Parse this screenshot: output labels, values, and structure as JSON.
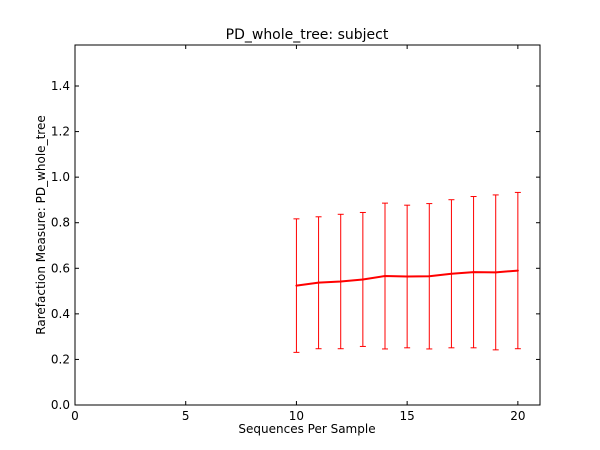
{
  "chart_data": {
    "type": "line",
    "title": "PD_whole_tree: subject",
    "xlabel": "Sequences Per Sample",
    "ylabel": "Rarefaction Measure: PD_whole_tree",
    "xlim": [
      0,
      21
    ],
    "ylim": [
      0.0,
      1.58
    ],
    "xticks": [
      0,
      5,
      10,
      15,
      20
    ],
    "xtick_labels": [
      "0",
      "5",
      "10",
      "15",
      "20"
    ],
    "yticks": [
      0.0,
      0.2,
      0.4,
      0.6,
      0.8,
      1.0,
      1.2,
      1.4
    ],
    "ytick_labels": [
      "0.0",
      "0.2",
      "0.4",
      "0.6",
      "0.8",
      "1.0",
      "1.2",
      "1.4"
    ],
    "grid": false,
    "series": [
      {
        "color": "#ff0000",
        "x": [
          10,
          11,
          12,
          13,
          14,
          15,
          16,
          17,
          18,
          19,
          20
        ],
        "y": [
          0.524,
          0.537,
          0.542,
          0.551,
          0.566,
          0.564,
          0.565,
          0.576,
          0.583,
          0.582,
          0.59
        ],
        "err_low": [
          0.231,
          0.247,
          0.247,
          0.257,
          0.246,
          0.251,
          0.246,
          0.251,
          0.251,
          0.242,
          0.247
        ],
        "err_high": [
          0.817,
          0.826,
          0.837,
          0.845,
          0.886,
          0.877,
          0.884,
          0.901,
          0.915,
          0.922,
          0.933
        ]
      }
    ]
  }
}
